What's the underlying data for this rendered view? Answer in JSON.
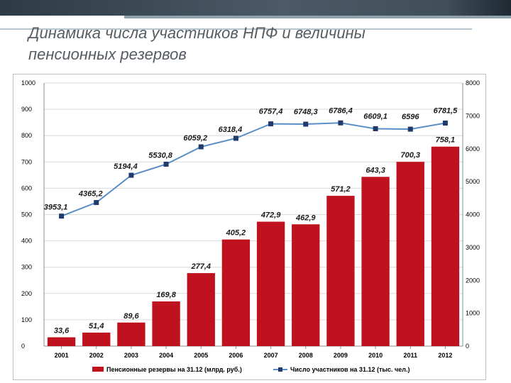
{
  "slide": {
    "title_line1": "Динамика числа участников НПФ и величины",
    "title_line2": "пенсионных резервов"
  },
  "colors": {
    "bar": "#c0111f",
    "line": "#5b8fc7",
    "marker": "#1f3a6b",
    "grid": "#d9d9d9"
  },
  "chart_data": {
    "type": "bar",
    "categories": [
      "2001",
      "2002",
      "2003",
      "2004",
      "2005",
      "2006",
      "2007",
      "2008",
      "2009",
      "2010",
      "2011",
      "2012"
    ],
    "series": [
      {
        "name": "Пенсионные резервы на 31.12 (млрд. руб.)",
        "type": "bar",
        "axis": "left",
        "values": [
          33.6,
          51.4,
          89.6,
          169.8,
          277.4,
          405.2,
          472.9,
          462.9,
          571.2,
          643.3,
          700.3,
          758.1
        ],
        "labels": [
          "33,6",
          "51,4",
          "89,6",
          "169,8",
          "277,4",
          "405,2",
          "472,9",
          "462,9",
          "571,2",
          "643,3",
          "700,3",
          "758,1"
        ]
      },
      {
        "name": "Число участников на 31.12 (тыс. чел.)",
        "type": "line",
        "axis": "right",
        "values": [
          3953.1,
          4365.2,
          5194.4,
          5530.8,
          6059.2,
          6318.4,
          6757.4,
          6748.3,
          6786.4,
          6609.1,
          6596,
          6781.5
        ],
        "labels": [
          "3953,1",
          "4365,2",
          "5194,4",
          "5530,8",
          "6059,2",
          "6318,4",
          "6757,4",
          "6748,3",
          "6786,4",
          "6609,1",
          "6596",
          "6781,5"
        ]
      }
    ],
    "y_left": {
      "min": 0,
      "max": 1000,
      "ticks": [
        "0",
        "100",
        "200",
        "300",
        "400",
        "500",
        "600",
        "700",
        "800",
        "900",
        "1000"
      ]
    },
    "y_right": {
      "min": 0,
      "max": 8000,
      "ticks": [
        "0",
        "1000",
        "2000",
        "3000",
        "4000",
        "5000",
        "6000",
        "7000",
        "8000"
      ]
    },
    "grid": true,
    "legend_position": "bottom"
  }
}
